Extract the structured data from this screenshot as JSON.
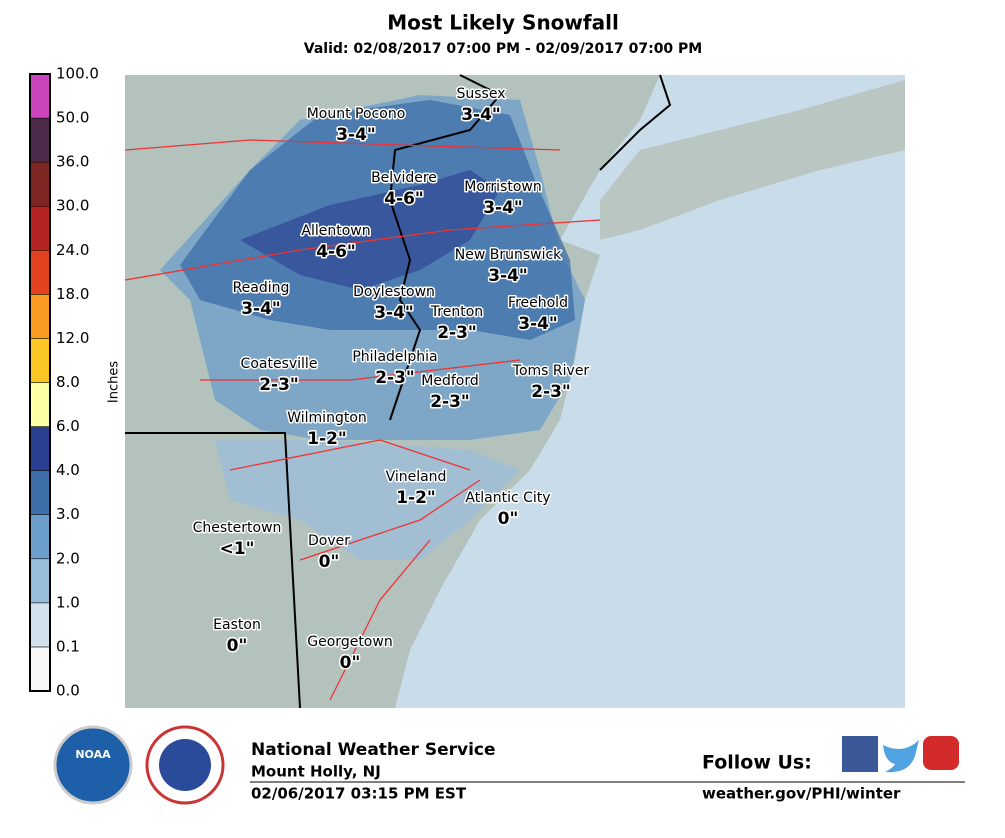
{
  "header": {
    "title": "Most Likely Snowfall",
    "valid": "Valid: 02/08/2017 07:00 PM - 02/09/2017 07:00 PM"
  },
  "legend": {
    "unit": "Inches",
    "labels": [
      "0.0",
      "0.1",
      "1.0",
      "2.0",
      "3.0",
      "4.0",
      "6.0",
      "8.0",
      "12.0",
      "18.0",
      "24.0",
      "30.0",
      "36.0",
      "50.0",
      "100.0"
    ],
    "colors": [
      "#f7f7f7",
      "#d3e1ec",
      "#98bcdb",
      "#6c9ecb",
      "#3e6ea8",
      "#2b3f91",
      "#ffffa6",
      "#fac626",
      "#f99a22",
      "#e2421f",
      "#b52323",
      "#7e2624",
      "#4c2a4a",
      "#cc44bb"
    ]
  },
  "towns": [
    {
      "name": "Mount Pocono",
      "amount": "3-4\""
    },
    {
      "name": "Sussex",
      "amount": "3-4\""
    },
    {
      "name": "Belvidere",
      "amount": "4-6\""
    },
    {
      "name": "Morristown",
      "amount": "3-4\""
    },
    {
      "name": "Allentown",
      "amount": "4-6\""
    },
    {
      "name": "New Brunswick",
      "amount": "3-4\""
    },
    {
      "name": "Reading",
      "amount": "3-4\""
    },
    {
      "name": "Doylestown",
      "amount": "3-4\""
    },
    {
      "name": "Freehold",
      "amount": "3-4\""
    },
    {
      "name": "Trenton",
      "amount": "2-3\""
    },
    {
      "name": "Coatesville",
      "amount": "2-3\""
    },
    {
      "name": "Philadelphia",
      "amount": "2-3\""
    },
    {
      "name": "Toms River",
      "amount": "2-3\""
    },
    {
      "name": "Medford",
      "amount": "2-3\""
    },
    {
      "name": "Wilmington",
      "amount": "1-2\""
    },
    {
      "name": "Vineland",
      "amount": "1-2\""
    },
    {
      "name": "Atlantic City",
      "amount": "0\""
    },
    {
      "name": "Chestertown",
      "amount": "<1\""
    },
    {
      "name": "Dover",
      "amount": "0\""
    },
    {
      "name": "Easton",
      "amount": "0\""
    },
    {
      "name": "Georgetown",
      "amount": "0\""
    }
  ],
  "footer": {
    "agency": "National Weather Service",
    "office": "Mount Holly, NJ",
    "issued": "02/06/2017 03:15 PM EST",
    "follow": "Follow Us:",
    "url": "weather.gov/PHI/winter",
    "noaa": "NOAA"
  }
}
